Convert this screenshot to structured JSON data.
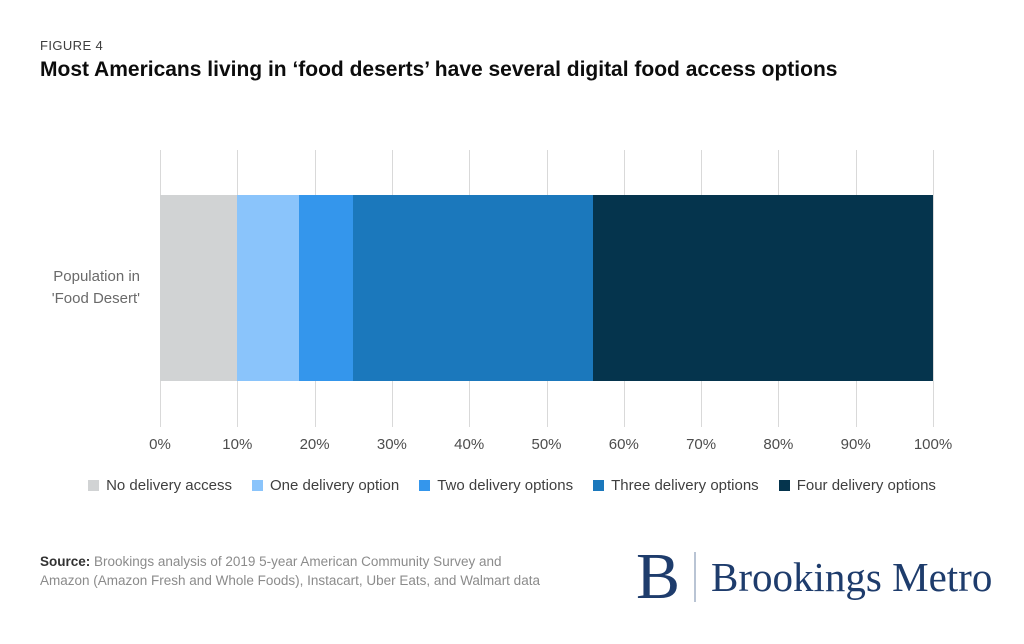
{
  "figure_label": "FIGURE 4",
  "title": "Most Americans living in ‘food deserts’ have several digital food access options",
  "category_label": {
    "line1": "Population in",
    "line2": "'Food Desert'"
  },
  "chart_data": {
    "type": "bar",
    "stacked": true,
    "orientation": "horizontal",
    "categories": [
      "Population in 'Food Desert'"
    ],
    "series": [
      {
        "name": "No delivery access",
        "values": [
          10
        ],
        "color": "#d1d3d4"
      },
      {
        "name": "One delivery option",
        "values": [
          8
        ],
        "color": "#8ac4fb"
      },
      {
        "name": "Two delivery options",
        "values": [
          7
        ],
        "color": "#3496ec"
      },
      {
        "name": "Three delivery options",
        "values": [
          31
        ],
        "color": "#1b78bc"
      },
      {
        "name": "Four delivery options",
        "values": [
          44
        ],
        "color": "#05344d"
      }
    ],
    "x_ticks": [
      "0%",
      "10%",
      "20%",
      "30%",
      "40%",
      "50%",
      "60%",
      "70%",
      "80%",
      "90%",
      "100%"
    ],
    "xlim": [
      0,
      100
    ],
    "grid": true,
    "gridline_color": "#d9d9d9",
    "legend_position": "bottom"
  },
  "source": {
    "label": "Source:",
    "line1": "Brookings analysis of 2019 5-year American Community Survey and",
    "line2": "Amazon (Amazon Fresh and Whole Foods), Instacart, Uber Eats, and Walmart data"
  },
  "logo": {
    "monogram": "B",
    "name": "Brookings Metro",
    "color": "#1e3c6c"
  }
}
